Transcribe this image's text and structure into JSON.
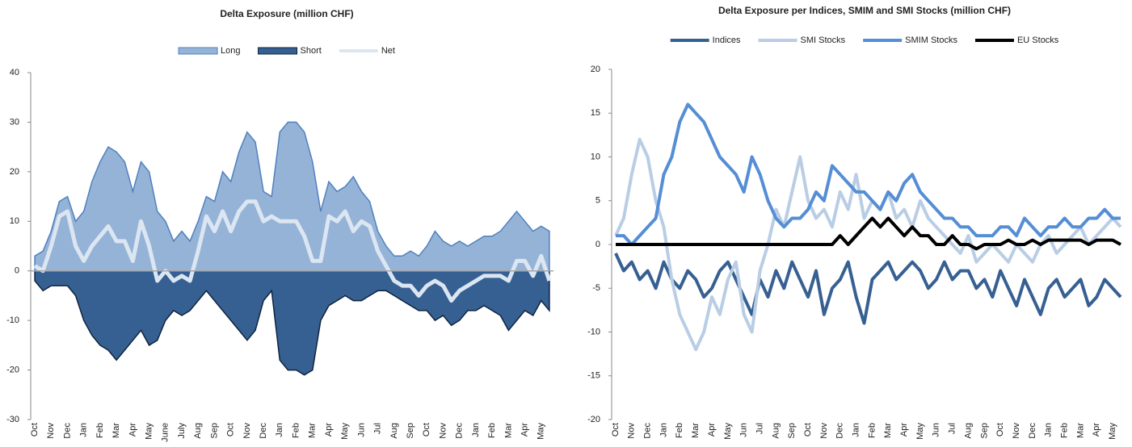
{
  "chart_data": [
    {
      "type": "area",
      "title": "Delta Exposure (million CHF)",
      "categories": [
        "Oct",
        null,
        "Nov",
        null,
        "Dec",
        null,
        "Jan",
        null,
        "Feb",
        null,
        "Mar",
        null,
        "Apr",
        null,
        "May",
        null,
        "June",
        null,
        "July",
        null,
        "Aug",
        null,
        "Sep",
        null,
        "Oct",
        null,
        "Nov",
        null,
        "Dec",
        null,
        "Jan",
        null,
        "Feb",
        null,
        "Mar",
        null,
        "Apr",
        null,
        "May",
        null,
        "Jun",
        null,
        "Jul",
        null,
        "Aug",
        null,
        "Sep",
        null,
        "Oct",
        null,
        "Nov",
        null,
        "Dec",
        null,
        "Jan",
        null,
        "Feb",
        null,
        "Mar",
        null,
        "Apr",
        null,
        "May",
        null
      ],
      "ylim": [
        -30,
        40
      ],
      "yticks": [
        -30,
        -20,
        -10,
        0,
        10,
        20,
        30,
        40
      ],
      "series": [
        {
          "name": "Long",
          "type": "area",
          "color": "#95b3d7",
          "values": [
            3,
            4,
            8,
            14,
            15,
            10,
            12,
            18,
            22,
            25,
            24,
            22,
            16,
            22,
            20,
            12,
            10,
            6,
            8,
            6,
            10,
            15,
            14,
            20,
            18,
            24,
            28,
            26,
            16,
            15,
            28,
            30,
            30,
            28,
            22,
            12,
            18,
            16,
            17,
            19,
            16,
            14,
            8,
            5,
            3,
            3,
            4,
            3,
            5,
            8,
            6,
            5,
            6,
            5,
            6,
            7,
            7,
            8,
            10,
            12,
            10,
            8,
            9,
            8
          ]
        },
        {
          "name": "Short",
          "type": "area",
          "color": "#366092",
          "values": [
            -2,
            -4,
            -3,
            -3,
            -3,
            -5,
            -10,
            -13,
            -15,
            -16,
            -18,
            -16,
            -14,
            -12,
            -15,
            -14,
            -10,
            -8,
            -9,
            -8,
            -6,
            -4,
            -6,
            -8,
            -10,
            -12,
            -14,
            -12,
            -6,
            -4,
            -18,
            -20,
            -20,
            -21,
            -20,
            -10,
            -7,
            -6,
            -5,
            -6,
            -6,
            -5,
            -4,
            -4,
            -5,
            -6,
            -7,
            -8,
            -8,
            -10,
            -9,
            -11,
            -10,
            -8,
            -8,
            -7,
            -8,
            -9,
            -12,
            -10,
            -8,
            -9,
            -6,
            -8
          ]
        },
        {
          "name": "Net",
          "type": "line",
          "color": "#dce6f2",
          "values": [
            1,
            0,
            5,
            11,
            12,
            5,
            2,
            5,
            7,
            9,
            6,
            6,
            2,
            10,
            5,
            -2,
            0,
            -2,
            -1,
            -2,
            4,
            11,
            8,
            12,
            8,
            12,
            14,
            14,
            10,
            11,
            10,
            10,
            10,
            7,
            2,
            2,
            11,
            10,
            12,
            8,
            10,
            9,
            4,
            1,
            -2,
            -3,
            -3,
            -5,
            -3,
            -2,
            -3,
            -6,
            -4,
            -3,
            -2,
            -1,
            -1,
            -1,
            -2,
            2,
            2,
            -1,
            3,
            -2
          ]
        }
      ]
    },
    {
      "type": "line",
      "title": "Delta Exposure per Indices, SMIM and SMI Stocks (million CHF)",
      "categories": [
        "Oct",
        null,
        "Nov",
        null,
        "Dec",
        null,
        "Jan",
        null,
        "Feb",
        null,
        "Mar",
        null,
        "Apr",
        null,
        "May",
        null,
        "Jun",
        null,
        "Jul",
        null,
        "Aug",
        null,
        "Sep",
        null,
        "Oct",
        null,
        "Nov",
        null,
        "Dec",
        null,
        "Jan",
        null,
        "Feb",
        null,
        "Mar",
        null,
        "Apr",
        null,
        "May",
        null,
        "Jun",
        null,
        "Jul",
        null,
        "Aug",
        null,
        "Sep",
        null,
        "Oct",
        null,
        "Nov",
        null,
        "Dec",
        null,
        "Jan",
        null,
        "Feb",
        null,
        "Mar",
        null,
        "Apr",
        null,
        "May",
        null
      ],
      "ylim": [
        -20,
        20
      ],
      "yticks": [
        -20,
        -15,
        -10,
        -5,
        0,
        5,
        10,
        15,
        20
      ],
      "series": [
        {
          "name": "Indices",
          "type": "line",
          "color": "#376092",
          "values": [
            -1,
            -3,
            -2,
            -4,
            -3,
            -5,
            -2,
            -4,
            -5,
            -3,
            -4,
            -6,
            -5,
            -3,
            -2,
            -4,
            -6,
            -8,
            -4,
            -6,
            -3,
            -5,
            -2,
            -4,
            -6,
            -3,
            -8,
            -5,
            -4,
            -2,
            -6,
            -9,
            -4,
            -3,
            -2,
            -4,
            -3,
            -2,
            -3,
            -5,
            -4,
            -2,
            -4,
            -3,
            -3,
            -5,
            -4,
            -6,
            -3,
            -5,
            -7,
            -4,
            -6,
            -8,
            -5,
            -4,
            -6,
            -5,
            -4,
            -7,
            -6,
            -4,
            -5,
            -6
          ]
        },
        {
          "name": "SMI Stocks",
          "type": "line",
          "color": "#b9cde5",
          "values": [
            1,
            3,
            8,
            12,
            10,
            5,
            2,
            -4,
            -8,
            -10,
            -12,
            -10,
            -6,
            -8,
            -4,
            -2,
            -8,
            -10,
            -3,
            0,
            4,
            2,
            6,
            10,
            5,
            3,
            4,
            2,
            6,
            4,
            8,
            3,
            5,
            4,
            6,
            3,
            4,
            2,
            5,
            3,
            2,
            1,
            0,
            -1,
            1,
            -2,
            -1,
            0,
            -1,
            -2,
            0,
            -1,
            -2,
            0,
            1,
            -1,
            0,
            1,
            2,
            0,
            1,
            2,
            3,
            2
          ]
        },
        {
          "name": "SMIM Stocks",
          "type": "line",
          "color": "#558ed5",
          "values": [
            1,
            1,
            0,
            1,
            2,
            3,
            8,
            10,
            14,
            16,
            15,
            14,
            12,
            10,
            9,
            8,
            6,
            10,
            8,
            5,
            3,
            2,
            3,
            3,
            4,
            6,
            5,
            9,
            8,
            7,
            6,
            6,
            5,
            4,
            6,
            5,
            7,
            8,
            6,
            5,
            4,
            3,
            3,
            2,
            2,
            1,
            1,
            1,
            2,
            2,
            1,
            3,
            2,
            1,
            2,
            2,
            3,
            2,
            2,
            3,
            3,
            4,
            3,
            3
          ]
        },
        {
          "name": "EU Stocks",
          "type": "line",
          "color": "#000000",
          "values": [
            0,
            0,
            0,
            0,
            0,
            0,
            0,
            0,
            0,
            0,
            0,
            0,
            0,
            0,
            0,
            0,
            0,
            0,
            0,
            0,
            0,
            0,
            0,
            0,
            0,
            0,
            0,
            0,
            1,
            0,
            1,
            2,
            3,
            2,
            3,
            2,
            1,
            2,
            1,
            1,
            0,
            0,
            1,
            0,
            0,
            -0.5,
            0,
            0,
            0,
            0.5,
            0,
            0,
            0.5,
            0,
            0.5,
            0.5,
            0.5,
            0.5,
            0.5,
            0,
            0.5,
            0.5,
            0.5,
            0
          ]
        }
      ]
    }
  ]
}
